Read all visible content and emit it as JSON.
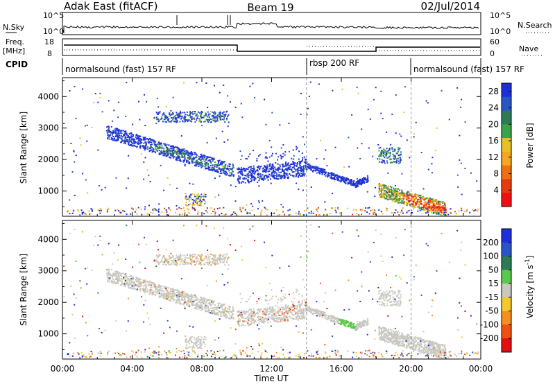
{
  "header": {
    "station": "Adak East (fitACF)",
    "beam": "Beam 19",
    "date": "02/Jul/2014"
  },
  "noise_panel": {
    "left_label": "N.Sky",
    "right_label": "N.Search",
    "left_ticks": [
      "10^5",
      "10^0"
    ],
    "right_ticks": [
      "10^5",
      "10^0"
    ]
  },
  "freq_panel": {
    "left_label_1": "Freq.",
    "left_label_2": "[MHz]",
    "right_label": "Nave",
    "left_ticks": [
      "18",
      "8"
    ],
    "right_ticks": [
      "60",
      "0"
    ]
  },
  "cpid": {
    "label": "CPID",
    "segments": [
      {
        "text": "normalsound (fast) 157 RF",
        "start_hour": 0
      },
      {
        "text": "rbsp 200 RF",
        "start_hour": 14
      },
      {
        "text": "normalsound (fast) 157 RF",
        "start_hour": 20
      }
    ]
  },
  "colors": {
    "power_scale": [
      "#1f2fd8",
      "#2a55c8",
      "#2d7a55",
      "#3aa24a",
      "#e8c02a",
      "#f5a623",
      "#f07010",
      "#e63a10",
      "#ee1010"
    ],
    "velocity_scale": [
      "#1f2fd8",
      "#2a55c8",
      "#2d7a55",
      "#5ac84a",
      "#c8c8c0",
      "#f5c830",
      "#f59020",
      "#f05010",
      "#e01010"
    ],
    "background": "#ffffff"
  },
  "chart_data": [
    {
      "type": "heatmap",
      "name": "power",
      "ylabel": "Slant Range [km]",
      "xlabel": "",
      "xlim_hours": [
        0,
        24
      ],
      "ylim": [
        200,
        4600
      ],
      "yticks": [
        1000,
        2000,
        3000,
        4000
      ],
      "scatter_regions_approx": [
        {
          "t_start": 2.5,
          "t_end": 9.8,
          "r_start": 2900,
          "r_end": 1650,
          "level": "mixed",
          "desc_points": [
            [
              2.5,
              2900
            ],
            [
              5.0,
              2300
            ],
            [
              8.0,
              1900
            ],
            [
              9.8,
              1600
            ]
          ]
        },
        {
          "t_start": 5.3,
          "t_end": 9.5,
          "r_low": 3200,
          "r_high": 3550,
          "level": "blue-green"
        },
        {
          "t_start": 10.0,
          "t_end": 14.0,
          "r_low": 1300,
          "r_high": 1800,
          "level": "blue"
        },
        {
          "t_start": 14.0,
          "t_end": 17.5,
          "r_start": 1800,
          "r_end": 1200,
          "level": "blue"
        },
        {
          "t_start": 18.1,
          "t_end": 22.0,
          "r_start": 1100,
          "r_end": 350,
          "level": "yellow-red"
        }
      ],
      "colorbar": {
        "label": "Power [dB]",
        "ticks": [
          4,
          8,
          12,
          16,
          20,
          24,
          28
        ],
        "range": [
          0,
          30
        ]
      }
    },
    {
      "type": "heatmap",
      "name": "velocity",
      "ylabel": "Slant Range [km]",
      "xlabel": "Time UT",
      "xlim_hours": [
        0,
        24
      ],
      "xticks": [
        "00:00",
        "04:00",
        "08:00",
        "12:00",
        "16:00",
        "20:00",
        "00:00"
      ],
      "ylim": [
        200,
        4600
      ],
      "yticks": [
        1000,
        2000,
        3000,
        4000
      ],
      "colorbar": {
        "label": "Velocity [m s^-1]",
        "ticks": [
          200,
          100,
          50,
          15,
          -15,
          -50,
          -100,
          -200
        ]
      }
    }
  ]
}
